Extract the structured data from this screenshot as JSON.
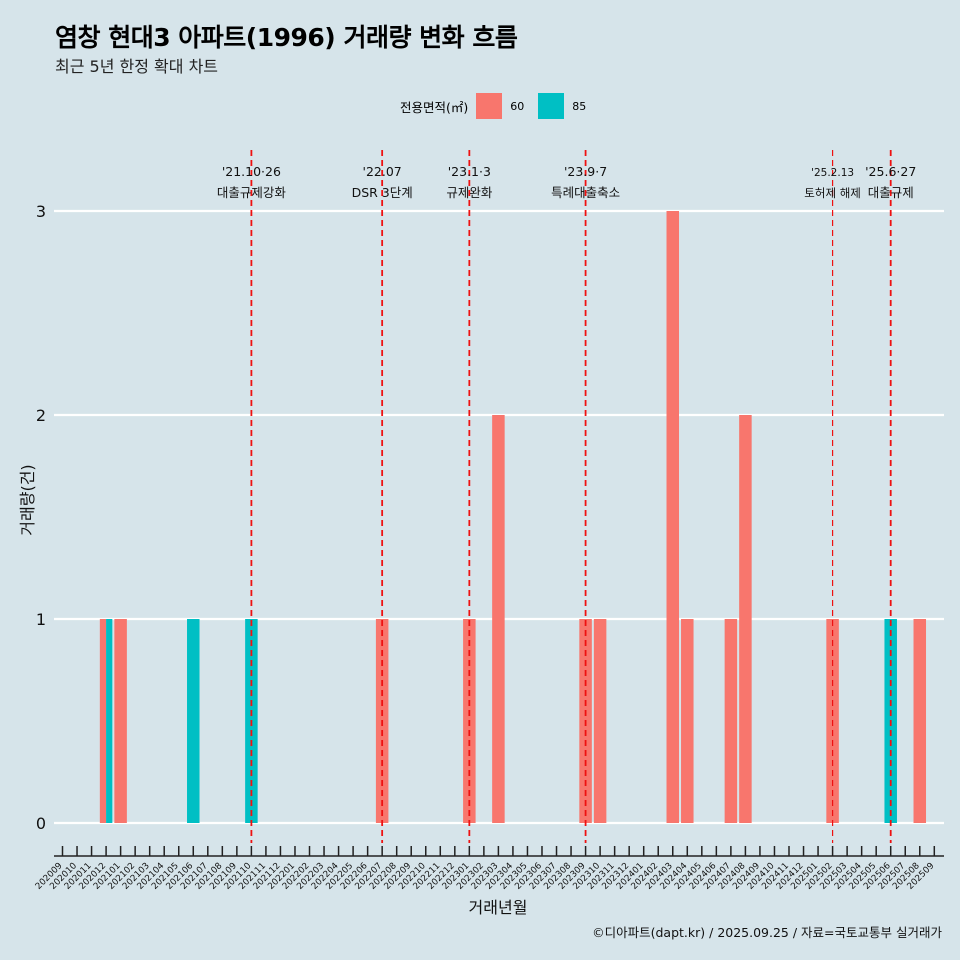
{
  "title": "염창 현대3 아파트(1996) 거래량 변화 흐름",
  "subtitle": "최근 5년 한정 확대 차트",
  "caption": "©디아파트(dapt.kr) / 2025.09.25 / 자료=국토교통부 실거래가",
  "legend": {
    "title": "전용면적(㎡)",
    "items": [
      {
        "label": "60",
        "color": "#f8766d"
      },
      {
        "label": "85",
        "color": "#00bfc4"
      }
    ]
  },
  "chart_data": {
    "type": "bar",
    "title": "염창 현대3 아파트(1996) 거래량 변화 흐름",
    "xlabel": "거래년월",
    "ylabel": "거래량(건)",
    "ylim": [
      0,
      3
    ],
    "yticks": [
      0,
      1,
      2,
      3
    ],
    "categories": [
      "202009",
      "202010",
      "202011",
      "202012",
      "202101",
      "202102",
      "202103",
      "202104",
      "202105",
      "202106",
      "202107",
      "202108",
      "202109",
      "202110",
      "202111",
      "202112",
      "202201",
      "202202",
      "202203",
      "202204",
      "202205",
      "202206",
      "202207",
      "202208",
      "202209",
      "202210",
      "202211",
      "202212",
      "202301",
      "202302",
      "202303",
      "202304",
      "202305",
      "202306",
      "202307",
      "202308",
      "202309",
      "202310",
      "202311",
      "202312",
      "202401",
      "202402",
      "202403",
      "202404",
      "202405",
      "202406",
      "202407",
      "202408",
      "202409",
      "202410",
      "202411",
      "202412",
      "202501",
      "202502",
      "202503",
      "202504",
      "202505",
      "202506",
      "202507",
      "202508",
      "202509"
    ],
    "series": [
      {
        "name": "60",
        "color": "#f8766d",
        "values": [
          {
            "month": "202012",
            "value": 1
          },
          {
            "month": "202101",
            "value": 1
          },
          {
            "month": "202207",
            "value": 1
          },
          {
            "month": "202301",
            "value": 1
          },
          {
            "month": "202303",
            "value": 2
          },
          {
            "month": "202309",
            "value": 1
          },
          {
            "month": "202310",
            "value": 1
          },
          {
            "month": "202403",
            "value": 3
          },
          {
            "month": "202404",
            "value": 1
          },
          {
            "month": "202407",
            "value": 1
          },
          {
            "month": "202408",
            "value": 2
          },
          {
            "month": "202502",
            "value": 1
          },
          {
            "month": "202508",
            "value": 1
          }
        ]
      },
      {
        "name": "85",
        "color": "#00bfc4",
        "values": [
          {
            "month": "202012",
            "value": 1
          },
          {
            "month": "202106",
            "value": 1
          },
          {
            "month": "202110",
            "value": 1
          },
          {
            "month": "202506",
            "value": 1
          }
        ]
      }
    ],
    "events": [
      {
        "date": "'21.10·26",
        "label": "대출규제강화",
        "month": "202110",
        "offset": 0.0
      },
      {
        "date": "'22.07",
        "label": "DSR 3단계",
        "month": "202207",
        "offset": 0.0
      },
      {
        "date": "'23.1·3",
        "label": "규제완화",
        "month": "202301",
        "offset": 0.0
      },
      {
        "date": "'23.9·7",
        "label": "특례대출축소",
        "month": "202309",
        "offset": 0.0
      },
      {
        "date": "'25.2.13",
        "label": "토허제 해제",
        "month": "202502",
        "offset": 0.0
      },
      {
        "date": "'25.6·27",
        "label": "대출규제",
        "month": "202506",
        "offset": 0.0
      }
    ]
  }
}
